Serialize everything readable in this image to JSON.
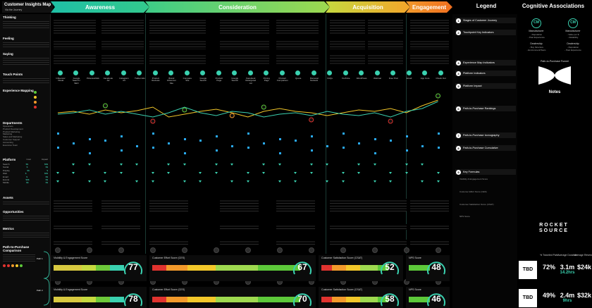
{
  "header": {
    "title": "Customer Insights Map",
    "subtitle": "Via the Journey",
    "phases": [
      "Awareness",
      "Consideration",
      "Acquisition",
      "Engagement"
    ],
    "legend": "Legend",
    "cognitive": "Cognitive Associations"
  },
  "sidebar": {
    "thinking": "Thinking",
    "feeling": "Feeling",
    "saying": "Saying",
    "touch_points": "Touch Points",
    "experience_mapping": "Experience Mapping",
    "departments": "Departments",
    "department_list": [
      "Operations",
      "Product Development",
      "Product Marketing",
      "Marketing",
      "Sales and Marketing",
      "Customer Support",
      "Accounting",
      "Executive Team"
    ],
    "platform": "Platform",
    "platform_cols": [
      "Cost",
      "Impact"
    ],
    "platforms": [
      {
        "name": "Search",
        "cost": "$$",
        "impact": "$$$"
      },
      {
        "name": "Social",
        "cost": "$",
        "impact": "$$"
      },
      {
        "name": "Display",
        "cost": "$$",
        "impact": "$"
      },
      {
        "name": "Web",
        "cost": "$",
        "impact": "$$$"
      },
      {
        "name": "Email",
        "cost": "$",
        "impact": "$$"
      },
      {
        "name": "Events",
        "cost": "$$$",
        "impact": "$$"
      },
      {
        "name": "Mobile",
        "cost": "$$",
        "impact": "$$"
      }
    ],
    "assets": "Assets",
    "opportunities": "Opportunities",
    "metrics": "Metrics",
    "path_comparison": "Path-to-Purchase Comparison",
    "path1": "Path 1",
    "path2": "Path 2"
  },
  "touch_points": [
    "Influencer Visual",
    "Google Search / SEO",
    "Pinterest/Ads",
    "Facebook Ad",
    "Instagram Ad",
    "Twitter Ads",
    "Product Reviews",
    "Brand Influencer Site",
    "Compare Site",
    "Google Search",
    "Product Page",
    "Google Search",
    "Facebook Retargeted Ad",
    "Pricing Page",
    "Product Comparison",
    "Quora",
    "Personal Network",
    "FAQs",
    "YouTube",
    "WordPress",
    "Webinar",
    "Free Trial",
    "Email",
    "App Core",
    "Check Out"
  ],
  "scores": {
    "visibility": {
      "label": "Visibility & Engagement Score",
      "value1": "77",
      "value2": "78"
    },
    "effort": {
      "label": "Customer Effort Score (CES)",
      "value1": "67",
      "value2": "70"
    },
    "satisfaction": {
      "label": "Customer Satisfaction Score (CSAT)",
      "value1": "52",
      "value2": "58"
    },
    "nps": {
      "label": "NPS Score",
      "value1": "48",
      "value2": "46"
    }
  },
  "legend": {
    "items": [
      {
        "num": "1",
        "label": "Stages of Customer Journey"
      },
      {
        "num": "2",
        "label": "Touchpoint Key Indicators"
      },
      {
        "num": "3",
        "label": "Experience Map Indicators"
      },
      {
        "num": "4",
        "label": "Platform Indicators"
      },
      {
        "num": "5",
        "label": "Platform Impact"
      },
      {
        "num": "6",
        "label": "Path-to-Purchase Rankings"
      },
      {
        "num": "7",
        "label": "Path-to-Purchase Iconography"
      },
      {
        "num": "8",
        "label": "Path-to-Purchase Cumulative"
      },
      {
        "num": "9",
        "label": "Key Formulas"
      }
    ],
    "sub_labels": [
      "Visibility & Engagement Score",
      "Customer Effort Score (CES)",
      "Customer Satisfaction Score (CSAT)",
      "NPS Score"
    ]
  },
  "cognitive": {
    "a_label": "Manufacturer",
    "a_items": "- Reputation\n- Past Experience",
    "b_label": "Manufacturer",
    "b_items": "- Value per $\n- Reliability",
    "c_label": "Dealership",
    "c_items": "- Buy Structure\n- Environment/Team",
    "d_label": "Dealership",
    "d_items": "- Reputation\n- Past Experience",
    "funnel": "Path-to-Purchase Funnel",
    "notes": "Notes",
    "brand_line1": "ROCKET",
    "brand_line2": "SOURCE"
  },
  "bottom_stats": {
    "headers": [
      "% Traveled Path",
      "Average Duration",
      "Average Revenue"
    ],
    "row1": {
      "tbd": "TBD",
      "pct": "72%",
      "duration": "3.1m",
      "duration_sub": "14.2hrs",
      "revenue": "$24k"
    },
    "row2": {
      "tbd": "TBD",
      "pct": "49%",
      "duration": "2.4m",
      "duration_sub": "9hrs",
      "revenue": "$32k"
    }
  },
  "colors": {
    "teal": "#3ad1b0",
    "orange": "#f39a2b",
    "red": "#e0332f",
    "green": "#5dc93a",
    "blue": "#2aa9f0"
  }
}
